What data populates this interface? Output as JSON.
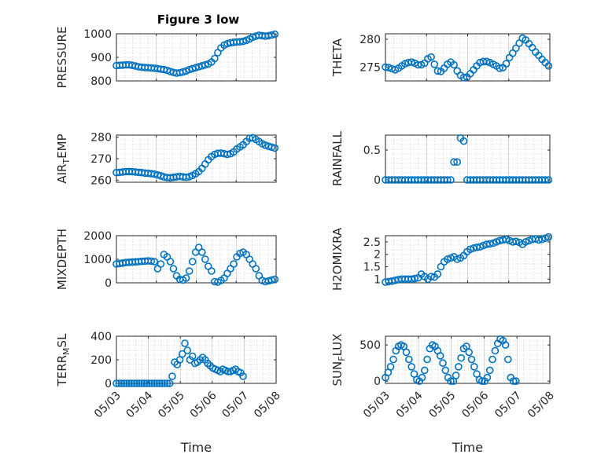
{
  "figure_title": "Figure 3 low",
  "marker_color": "#0072BD",
  "chart_data": [
    {
      "type": "scatter",
      "ylabel": "PRESSURE",
      "ylim": [
        800,
        1000
      ],
      "yticks": [
        "800",
        "900",
        "1000"
      ],
      "xlim": [
        "2005-05-03",
        "2005-05-07"
      ],
      "x_start": "05/03",
      "x_end": "05/07",
      "y": [
        865,
        866,
        867,
        868,
        868,
        866,
        863,
        860,
        858,
        857,
        856,
        855,
        854,
        852,
        850,
        848,
        845,
        840,
        836,
        833,
        835,
        838,
        842,
        848,
        852,
        856,
        860,
        864,
        868,
        872,
        880,
        895,
        920,
        940,
        952,
        958,
        962,
        964,
        965,
        966,
        968,
        972,
        978,
        985,
        990,
        994,
        992,
        990,
        992,
        995,
        998
      ]
    },
    {
      "type": "scatter",
      "ylabel": "THETA",
      "ylim": [
        272.5,
        281
      ],
      "yticks": [
        "275",
        "280"
      ],
      "xlim": [
        "2005-05-03",
        "2005-05-07"
      ],
      "x_start": "05/03",
      "x_end": "05/07",
      "y": [
        275,
        274.9,
        274.7,
        274.5,
        274.8,
        275.2,
        275.6,
        275.8,
        275.9,
        275.7,
        275.4,
        275.4,
        275.7,
        276.5,
        276.8,
        275.5,
        274.3,
        274.2,
        274.8,
        275.5,
        275.9,
        275.4,
        274.3,
        273.5,
        273.1,
        273.2,
        273.8,
        274.5,
        275.2,
        275.8,
        276,
        276,
        275.8,
        275.5,
        275.2,
        274.8,
        274.9,
        275.6,
        276.7,
        277.5,
        278.4,
        279.3,
        280.2,
        279.9,
        279.2,
        278.5,
        277.7,
        277.1,
        276.4,
        275.8,
        275.2
      ]
    },
    {
      "type": "scatter",
      "ylabel": "AIR_TEMP",
      "ylabel_main": "AIR",
      "ylabel_sub": "T",
      "ylabel_rest": "EMP",
      "ylim": [
        259,
        281
      ],
      "yticks": [
        "260",
        "270",
        "280"
      ],
      "xlim": [
        "2005-05-03",
        "2005-05-07"
      ],
      "x_start": "05/03",
      "x_end": "05/07",
      "y": [
        263.5,
        263.6,
        263.8,
        264,
        264,
        263.9,
        263.8,
        263.6,
        263.5,
        263.3,
        263.2,
        263,
        262.8,
        262.4,
        262,
        261.5,
        261.2,
        261.1,
        261.3,
        261.5,
        261.7,
        261.5,
        261.3,
        261.6,
        262.2,
        263,
        264,
        265.5,
        267.5,
        269.5,
        271,
        272,
        272.5,
        272.6,
        272.3,
        272,
        272.3,
        273.2,
        274.5,
        275.5,
        276.5,
        278,
        279.5,
        279.8,
        279,
        278,
        277,
        276.3,
        275.8,
        275.4,
        275
      ]
    },
    {
      "type": "scatter",
      "ylabel": "RAINFALL",
      "ylim": [
        -0.04,
        0.75
      ],
      "yticks": [
        "0",
        "0.5"
      ],
      "xlim": [
        "2005-05-03",
        "2005-05-07"
      ],
      "x_start": "05/03",
      "x_end": "05/07",
      "y": [
        0,
        0,
        0,
        0,
        0,
        0,
        0,
        0,
        0,
        0,
        0,
        0,
        0,
        0,
        0,
        0,
        0,
        0,
        0,
        0,
        0,
        0.3,
        0.3,
        0.7,
        0.65,
        0,
        0,
        0,
        0,
        0,
        0,
        0,
        0,
        0,
        0,
        0,
        0,
        0,
        0,
        0,
        0,
        0,
        0,
        0,
        0,
        0,
        0,
        0,
        0,
        0,
        0
      ]
    },
    {
      "type": "scatter",
      "ylabel": "MIXDEPTH",
      "ylim": [
        0,
        2000
      ],
      "yticks": [
        "0",
        "1000",
        "2000"
      ],
      "xlim": [
        "2005-05-03",
        "2005-05-07"
      ],
      "x_start": "05/03",
      "x_end": "05/07",
      "y": [
        800,
        820,
        840,
        860,
        870,
        880,
        890,
        900,
        910,
        920,
        930,
        920,
        900,
        600,
        800,
        1200,
        1100,
        900,
        600,
        300,
        150,
        120,
        200,
        500,
        900,
        1300,
        1500,
        1300,
        1000,
        700,
        500,
        50,
        30,
        100,
        200,
        400,
        600,
        800,
        1100,
        1250,
        1300,
        1200,
        1000,
        800,
        600,
        300,
        100,
        50,
        80,
        120,
        150
      ]
    },
    {
      "type": "scatter",
      "ylabel": "H2OMIXRA",
      "ylim": [
        0.85,
        2.75
      ],
      "yticks": [
        "1",
        "1.5",
        "2",
        "2.5"
      ],
      "xlim": [
        "2005-05-03",
        "2005-05-07"
      ],
      "x_start": "05/03",
      "x_end": "05/07",
      "y": [
        0.88,
        0.9,
        0.92,
        0.95,
        0.98,
        1,
        1,
        1,
        1,
        1.02,
        1.05,
        1.2,
        1.1,
        1,
        1.1,
        1.08,
        1.2,
        1.5,
        1.7,
        1.8,
        1.85,
        1.9,
        1.8,
        1.85,
        1.95,
        2.1,
        2.2,
        2.25,
        2.28,
        2.3,
        2.35,
        2.4,
        2.42,
        2.45,
        2.5,
        2.55,
        2.58,
        2.6,
        2.55,
        2.5,
        2.52,
        2.48,
        2.4,
        2.5,
        2.55,
        2.6,
        2.62,
        2.58,
        2.6,
        2.65,
        2.7
      ]
    },
    {
      "type": "scatter",
      "ylabel": "TERR_MSL",
      "ylabel_main": "TERR",
      "ylabel_sub": "M",
      "ylabel_rest": "SL",
      "ylim": [
        0,
        400
      ],
      "yticks": [
        "0",
        "200",
        "400"
      ],
      "xlim": [
        "2005-05-03",
        "2005-05-08"
      ],
      "x_start": "05/03",
      "x_end": "05/08",
      "xticks": [
        "05/03",
        "05/04",
        "05/05",
        "05/06",
        "05/07",
        "05/08"
      ],
      "xlabel": "Time",
      "y": [
        0,
        0,
        0,
        0,
        0,
        0,
        0,
        0,
        0,
        0,
        0,
        0,
        0,
        0,
        0,
        0,
        0,
        0,
        0,
        0,
        0,
        0,
        60,
        180,
        160,
        200,
        250,
        340,
        280,
        200,
        230,
        170,
        180,
        200,
        220,
        200,
        170,
        150,
        130,
        120,
        110,
        100,
        120,
        110,
        100,
        100,
        110,
        120,
        100,
        90,
        60
      ]
    },
    {
      "type": "scatter",
      "ylabel": "SUN_FLUX",
      "ylabel_main": "SUN",
      "ylabel_sub": "F",
      "ylabel_rest": "LUX",
      "ylim": [
        -30,
        620
      ],
      "yticks": [
        "0",
        "500"
      ],
      "xlim": [
        "2005-05-03",
        "2005-05-08"
      ],
      "x_start": "05/03",
      "x_end": "05/08",
      "xticks": [
        "05/03",
        "05/04",
        "05/05",
        "05/06",
        "05/07",
        "05/08"
      ],
      "xlabel": "Time",
      "y": [
        50,
        120,
        200,
        300,
        420,
        480,
        500,
        480,
        400,
        300,
        200,
        100,
        20,
        0,
        50,
        150,
        300,
        450,
        500,
        480,
        420,
        350,
        250,
        150,
        50,
        0,
        0,
        80,
        200,
        320,
        450,
        480,
        400,
        300,
        200,
        100,
        20,
        0,
        0,
        50,
        150,
        300,
        420,
        520,
        580,
        560,
        500,
        300,
        50,
        0,
        0
      ]
    }
  ]
}
